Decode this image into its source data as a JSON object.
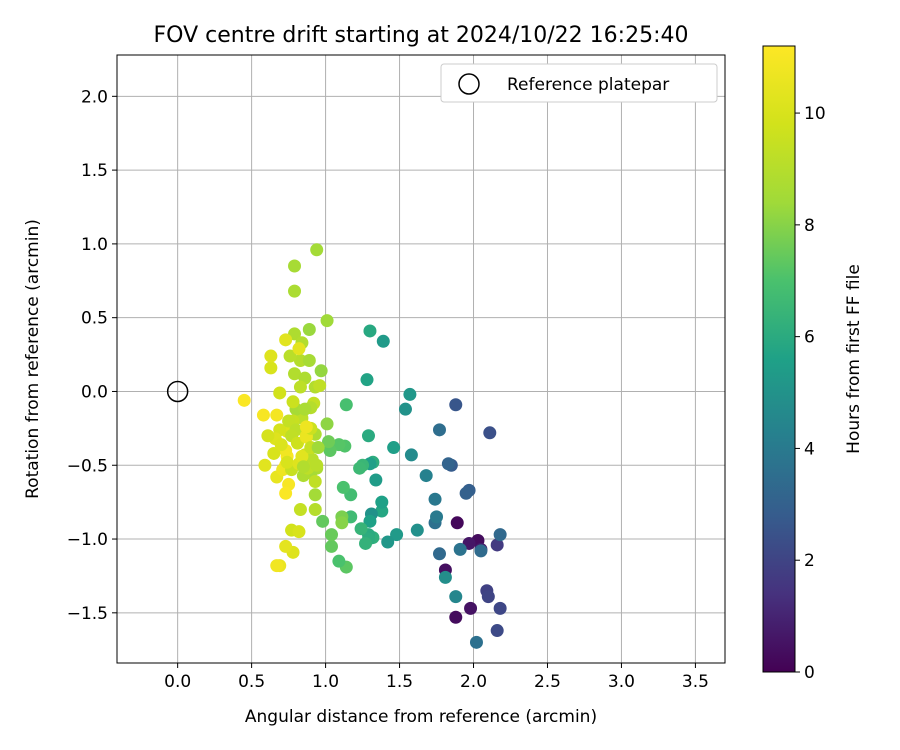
{
  "chart_data": {
    "type": "scatter",
    "title": "FOV centre drift starting at 2024/10/22 16:25:40",
    "xlabel": "Angular distance from reference (arcmin)",
    "ylabel": "Rotation from reference (arcmin)",
    "xlim": [
      -0.41,
      3.7
    ],
    "ylim": [
      -1.84,
      2.28
    ],
    "xticks": [
      0.0,
      0.5,
      1.0,
      1.5,
      2.0,
      2.5,
      3.0,
      3.5
    ],
    "xtick_labels": [
      "0.0",
      "0.5",
      "1.0",
      "1.5",
      "2.0",
      "2.5",
      "3.0",
      "3.5"
    ],
    "yticks": [
      -1.5,
      -1.0,
      -0.5,
      0.0,
      0.5,
      1.0,
      1.5,
      2.0
    ],
    "ytick_labels": [
      "−1.5",
      "−1.0",
      "−0.5",
      "0.0",
      "0.5",
      "1.0",
      "1.5",
      "2.0"
    ],
    "grid": true,
    "legend": {
      "position": "top-right",
      "entries": [
        "Reference platepar"
      ]
    },
    "reference": {
      "x": 0.0,
      "y": 0.0
    },
    "colorbar": {
      "label": "Hours from first FF file",
      "range": [
        0,
        11.2
      ],
      "ticks": [
        0,
        2,
        4,
        6,
        8,
        10
      ],
      "tick_labels": [
        "0",
        "2",
        "4",
        "6",
        "8",
        "10"
      ],
      "colormap": "viridis"
    },
    "points": [
      [
        1.89,
        -0.89,
        0.2
      ],
      [
        1.88,
        -1.53,
        0.3
      ],
      [
        1.98,
        -1.47,
        0.5
      ],
      [
        2.03,
        -1.01,
        0.3
      ],
      [
        1.97,
        -1.03,
        0.6
      ],
      [
        2.05,
        -1.07,
        0.7
      ],
      [
        1.81,
        -1.21,
        0.4
      ],
      [
        2.16,
        -1.04,
        1.7
      ],
      [
        2.16,
        -1.62,
        2.2
      ],
      [
        2.18,
        -1.47,
        2.1
      ],
      [
        2.09,
        -1.35,
        1.9
      ],
      [
        2.1,
        -1.39,
        2.0
      ],
      [
        2.11,
        -0.28,
        2.4
      ],
      [
        1.88,
        -0.09,
        2.6
      ],
      [
        1.85,
        -0.5,
        2.8
      ],
      [
        1.97,
        -0.67,
        2.9
      ],
      [
        1.95,
        -0.69,
        3.0
      ],
      [
        2.18,
        -0.97,
        3.3
      ],
      [
        2.05,
        -1.08,
        3.4
      ],
      [
        2.02,
        -1.7,
        3.6
      ],
      [
        1.91,
        -1.07,
        3.7
      ],
      [
        1.83,
        -0.49,
        3.1
      ],
      [
        1.77,
        -0.26,
        3.5
      ],
      [
        1.77,
        -1.1,
        3.3
      ],
      [
        1.74,
        -0.89,
        3.6
      ],
      [
        1.74,
        -0.73,
        3.9
      ],
      [
        1.75,
        -0.85,
        4.0
      ],
      [
        1.88,
        -1.39,
        4.5
      ],
      [
        1.81,
        -1.26,
        4.8
      ],
      [
        1.68,
        -0.57,
        4.3
      ],
      [
        1.58,
        -0.43,
        4.7
      ],
      [
        1.54,
        -0.12,
        5.0
      ],
      [
        1.57,
        -0.02,
        5.2
      ],
      [
        1.62,
        -0.94,
        4.9
      ],
      [
        1.48,
        -0.97,
        5.3
      ],
      [
        1.46,
        -0.38,
        5.5
      ],
      [
        1.42,
        -1.02,
        5.2
      ],
      [
        1.38,
        -0.81,
        5.8
      ],
      [
        1.38,
        -0.75,
        5.6
      ],
      [
        1.34,
        -0.6,
        5.4
      ],
      [
        1.39,
        0.34,
        5.3
      ],
      [
        1.3,
        0.41,
        5.9
      ],
      [
        1.28,
        0.08,
        5.7
      ],
      [
        1.29,
        -0.3,
        6.0
      ],
      [
        1.32,
        -0.48,
        6.1
      ],
      [
        1.3,
        -0.49,
        5.5
      ],
      [
        1.31,
        -0.83,
        5.0
      ],
      [
        1.3,
        -0.88,
        5.6
      ],
      [
        1.32,
        -0.99,
        6.2
      ],
      [
        1.29,
        -0.97,
        6.0
      ],
      [
        1.29,
        -1.0,
        6.1
      ],
      [
        1.27,
        -1.03,
        6.3
      ],
      [
        1.24,
        -0.93,
        6.4
      ],
      [
        1.25,
        -0.5,
        6.5
      ],
      [
        1.23,
        -0.52,
        6.6
      ],
      [
        1.17,
        -0.85,
        6.7
      ],
      [
        1.17,
        -0.7,
        6.8
      ],
      [
        1.14,
        -0.09,
        6.9
      ],
      [
        1.12,
        -0.65,
        7.0
      ],
      [
        1.13,
        -0.37,
        7.1
      ],
      [
        1.09,
        -0.36,
        7.2
      ],
      [
        1.14,
        -1.19,
        7.3
      ],
      [
        1.09,
        -1.15,
        7.0
      ],
      [
        1.04,
        -1.05,
        7.4
      ],
      [
        1.04,
        -0.97,
        7.5
      ],
      [
        1.03,
        -0.4,
        7.3
      ],
      [
        1.02,
        -0.34,
        7.6
      ],
      [
        0.98,
        -0.88,
        7.4
      ],
      [
        1.11,
        -0.85,
        7.8
      ],
      [
        1.11,
        -0.89,
        8.0
      ],
      [
        1.01,
        -0.22,
        8.1
      ],
      [
        0.97,
        0.14,
        8.2
      ],
      [
        1.01,
        0.48,
        8.4
      ],
      [
        0.89,
        0.42,
        8.3
      ],
      [
        0.94,
        0.96,
        8.5
      ],
      [
        0.79,
        0.85,
        8.6
      ],
      [
        0.79,
        0.68,
        8.7
      ],
      [
        0.79,
        0.39,
        8.8
      ],
      [
        0.84,
        0.33,
        8.9
      ],
      [
        0.83,
        0.21,
        9.0
      ],
      [
        0.89,
        0.21,
        8.6
      ],
      [
        0.76,
        0.24,
        9.1
      ],
      [
        0.79,
        0.12,
        8.9
      ],
      [
        0.86,
        0.09,
        8.8
      ],
      [
        0.83,
        0.03,
        9.2
      ],
      [
        0.93,
        0.03,
        8.9
      ],
      [
        0.96,
        0.04,
        9.3
      ],
      [
        0.92,
        -0.08,
        9.4
      ],
      [
        0.9,
        -0.11,
        9.0
      ],
      [
        0.84,
        -0.18,
        9.2
      ],
      [
        0.8,
        -0.12,
        8.6
      ],
      [
        0.78,
        -0.2,
        9.5
      ],
      [
        0.88,
        -0.27,
        9.6
      ],
      [
        0.93,
        -0.29,
        8.8
      ],
      [
        0.86,
        -0.43,
        9.7
      ],
      [
        0.91,
        -0.46,
        9.1
      ],
      [
        0.94,
        -0.52,
        8.7
      ],
      [
        0.9,
        -0.55,
        8.6
      ],
      [
        0.85,
        -0.57,
        8.8
      ],
      [
        0.93,
        -0.7,
        8.5
      ],
      [
        0.93,
        -0.8,
        9.0
      ],
      [
        0.83,
        -0.8,
        9.4
      ],
      [
        0.77,
        -0.94,
        9.8
      ],
      [
        0.82,
        -0.95,
        10.0
      ],
      [
        0.78,
        -1.09,
        10.2
      ],
      [
        0.73,
        -1.05,
        10.4
      ],
      [
        0.69,
        -1.18,
        10.6
      ],
      [
        0.67,
        -1.18,
        10.8
      ],
      [
        0.75,
        -0.63,
        11.0
      ],
      [
        0.73,
        -0.69,
        11.1
      ],
      [
        0.73,
        -0.5,
        10.9
      ],
      [
        0.67,
        -0.58,
        10.5
      ],
      [
        0.74,
        -0.44,
        11.1
      ],
      [
        0.73,
        -0.4,
        10.8
      ],
      [
        0.71,
        -0.53,
        10.7
      ],
      [
        0.74,
        -0.27,
        10.1
      ],
      [
        0.69,
        -0.26,
        9.9
      ],
      [
        0.66,
        -0.32,
        10.2
      ],
      [
        0.61,
        -0.3,
        9.9
      ],
      [
        0.59,
        -0.5,
        10.3
      ],
      [
        0.65,
        -0.42,
        10.0
      ],
      [
        0.7,
        -0.36,
        10.1
      ],
      [
        0.67,
        -0.16,
        10.9
      ],
      [
        0.58,
        -0.16,
        11.0
      ],
      [
        0.45,
        -0.06,
        11.1
      ],
      [
        0.63,
        0.16,
        10.0
      ],
      [
        0.63,
        0.24,
        10.2
      ],
      [
        0.73,
        0.35,
        10.3
      ],
      [
        0.82,
        0.29,
        10.4
      ],
      [
        0.69,
        -0.01,
        9.8
      ],
      [
        0.75,
        -0.2,
        9.4
      ],
      [
        0.8,
        -0.26,
        9.2
      ],
      [
        0.78,
        -0.07,
        9.6
      ],
      [
        0.77,
        -0.3,
        9.3
      ],
      [
        0.81,
        -0.35,
        9.7
      ],
      [
        0.87,
        -0.3,
        10.5
      ],
      [
        0.77,
        -0.53,
        9.5
      ],
      [
        0.74,
        -0.48,
        10.0
      ],
      [
        0.82,
        -0.49,
        10.2
      ],
      [
        0.87,
        -0.31,
        10.6
      ],
      [
        0.84,
        -0.44,
        10.3
      ],
      [
        0.9,
        -0.38,
        9.5
      ],
      [
        0.9,
        -0.25,
        9.6
      ],
      [
        0.87,
        -0.24,
        10.7
      ],
      [
        0.88,
        -0.52,
        9.2
      ],
      [
        0.93,
        -0.61,
        9.3
      ],
      [
        0.85,
        -0.51,
        8.9
      ],
      [
        0.94,
        -0.5,
        9.1
      ],
      [
        0.95,
        -0.38,
        8.4
      ],
      [
        0.86,
        -0.12,
        8.7
      ]
    ]
  }
}
